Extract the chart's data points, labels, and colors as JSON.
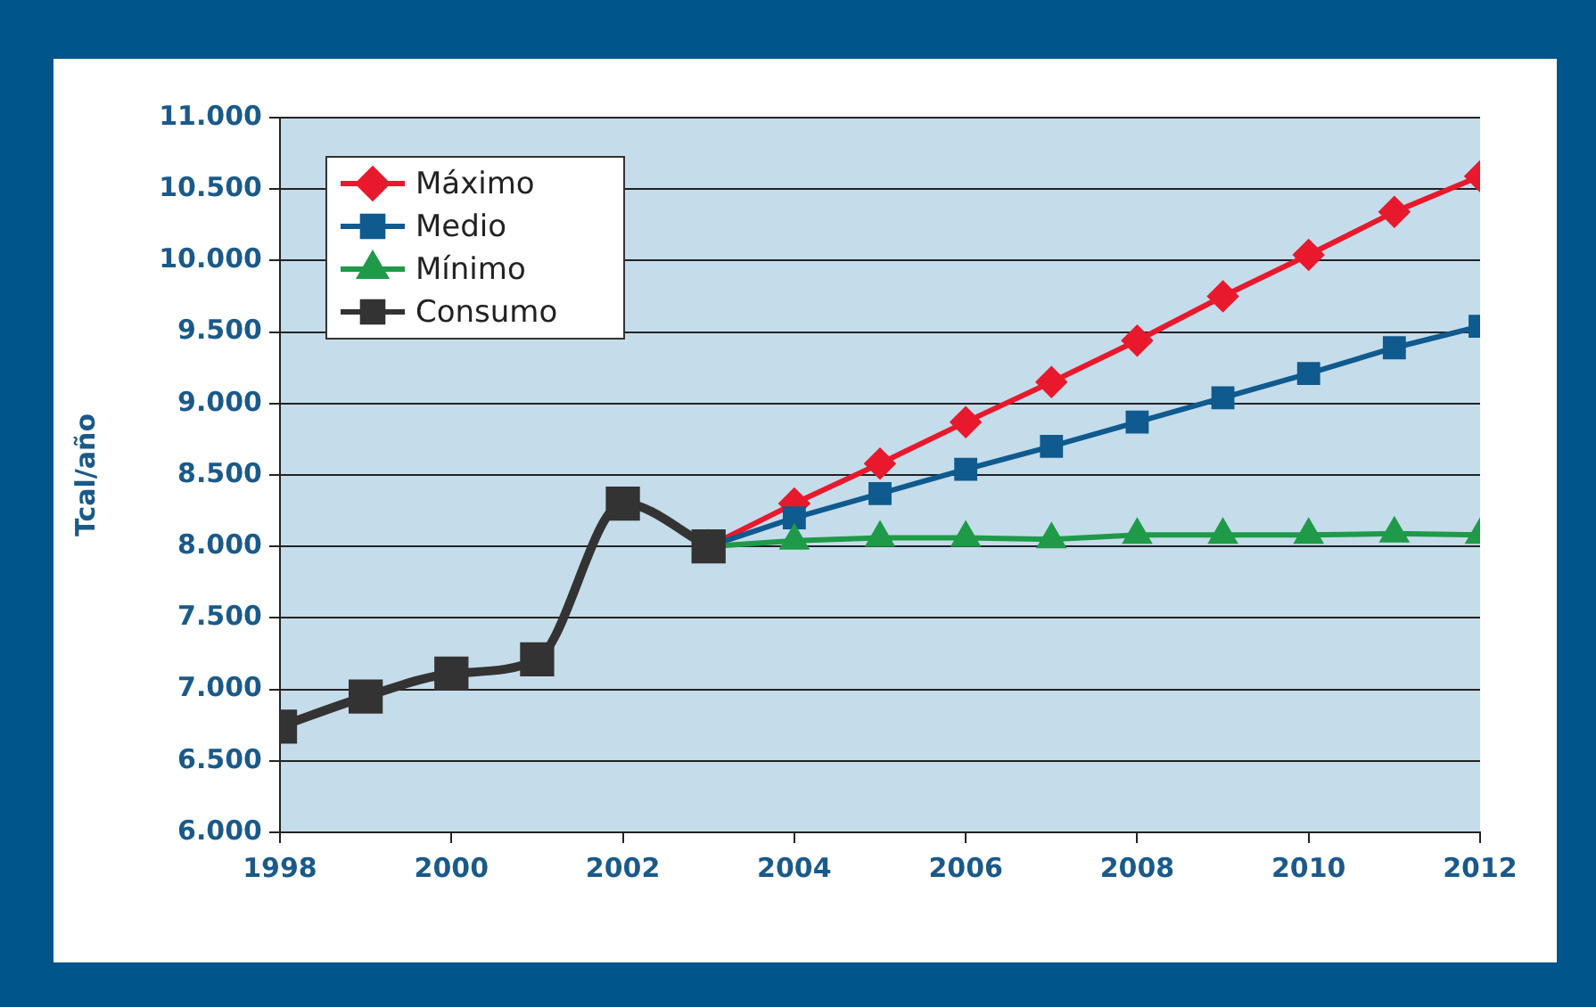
{
  "chart_data": {
    "type": "line",
    "ylabel": "Tcal/año",
    "legend": "top left",
    "grid": "y",
    "line_style": "solid",
    "xlim": [
      1998,
      2012
    ],
    "xticks": [
      1998,
      2000,
      2002,
      2004,
      2006,
      2008,
      2010,
      2012
    ],
    "ylim": [
      6000,
      11000
    ],
    "yticks": [
      {
        "value": 6000,
        "label": "6.000"
      },
      {
        "value": 6500,
        "label": "6.500"
      },
      {
        "value": 7000,
        "label": "7.000"
      },
      {
        "value": 7500,
        "label": "7.500"
      },
      {
        "value": 8000,
        "label": "8.000"
      },
      {
        "value": 8500,
        "label": "8.500"
      },
      {
        "value": 9000,
        "label": "9.000"
      },
      {
        "value": 9500,
        "label": "9.500"
      },
      {
        "value": 10000,
        "label": "10.000"
      },
      {
        "value": 10500,
        "label": "10.500"
      },
      {
        "value": 11000,
        "label": "11.000"
      }
    ],
    "series": [
      {
        "name": "Máximo",
        "color": "#e8192c",
        "marker": "diamond",
        "x": [
          2003,
          2004,
          2005,
          2006,
          2007,
          2008,
          2009,
          2010,
          2011,
          2012
        ],
        "values": [
          8000,
          8300,
          8580,
          8870,
          9150,
          9440,
          9750,
          10040,
          10340,
          10590
        ]
      },
      {
        "name": "Medio",
        "color": "#0f5a8e",
        "marker": "square",
        "x": [
          2003,
          2004,
          2005,
          2006,
          2007,
          2008,
          2009,
          2010,
          2011,
          2012
        ],
        "values": [
          8000,
          8200,
          8370,
          8540,
          8700,
          8870,
          9040,
          9210,
          9390,
          9540
        ]
      },
      {
        "name": "Mínimo",
        "color": "#1f9a48",
        "marker": "triangle",
        "x": [
          2003,
          2004,
          2005,
          2006,
          2007,
          2008,
          2009,
          2010,
          2011,
          2012
        ],
        "values": [
          8000,
          8040,
          8060,
          8060,
          8050,
          8080,
          8080,
          8080,
          8090,
          8080
        ]
      },
      {
        "name": "Consumo",
        "color": "#333333",
        "marker": "square",
        "x": [
          1998,
          1999,
          2000,
          2001,
          2002,
          2003
        ],
        "values": [
          6740,
          6950,
          7110,
          7210,
          8300,
          8000
        ]
      }
    ]
  }
}
